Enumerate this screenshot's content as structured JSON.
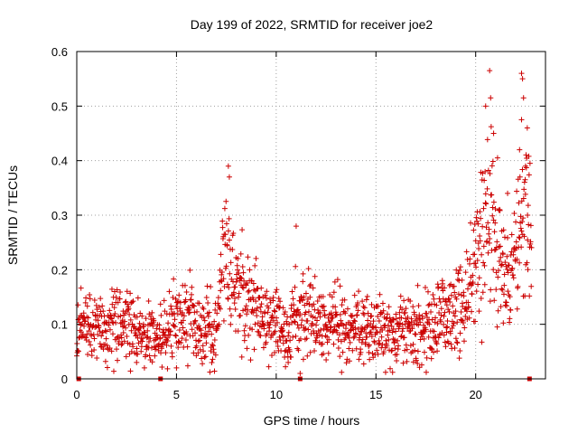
{
  "chart_data": {
    "type": "scatter",
    "title": "Day 199 of 2022, SRMTID for receiver joe2",
    "xlabel": "GPS time / hours",
    "ylabel": "SRMTID / TECUs",
    "xlim": [
      0,
      23.5
    ],
    "ylim": [
      0,
      0.6
    ],
    "xticks": [
      0,
      5,
      10,
      15,
      20
    ],
    "yticks": [
      0,
      0.1,
      0.2,
      0.3,
      0.4,
      0.5,
      0.6
    ],
    "xtick_labels": [
      "0",
      "5",
      "10",
      "15",
      "20"
    ],
    "ytick_labels": [
      "0",
      "0.1",
      "0.2",
      "0.3",
      "0.4",
      "0.5",
      "0.6"
    ],
    "grid": true,
    "series_color": "#cc0000",
    "marker": "plus",
    "series": [
      {
        "name": "SRMTID",
        "trend": [
          [
            0.0,
            0.11
          ],
          [
            1.0,
            0.09
          ],
          [
            2.0,
            0.1
          ],
          [
            3.0,
            0.09
          ],
          [
            4.0,
            0.07
          ],
          [
            5.0,
            0.12
          ],
          [
            6.0,
            0.11
          ],
          [
            7.0,
            0.08
          ],
          [
            7.5,
            0.25
          ],
          [
            8.0,
            0.16
          ],
          [
            9.0,
            0.12
          ],
          [
            10.0,
            0.1
          ],
          [
            10.5,
            0.07
          ],
          [
            11.0,
            0.12
          ],
          [
            12.0,
            0.11
          ],
          [
            13.0,
            0.1
          ],
          [
            14.0,
            0.09
          ],
          [
            15.0,
            0.09
          ],
          [
            16.0,
            0.08
          ],
          [
            17.0,
            0.09
          ],
          [
            18.0,
            0.1
          ],
          [
            19.0,
            0.12
          ],
          [
            19.5,
            0.14
          ],
          [
            20.0,
            0.22
          ],
          [
            20.5,
            0.3
          ],
          [
            21.0,
            0.25
          ],
          [
            21.5,
            0.18
          ],
          [
            22.0,
            0.22
          ],
          [
            22.5,
            0.3
          ],
          [
            22.8,
            0.26
          ]
        ],
        "peaks": [
          [
            7.6,
            0.39
          ],
          [
            7.65,
            0.37
          ],
          [
            11.0,
            0.28
          ],
          [
            20.5,
            0.5
          ],
          [
            20.7,
            0.565
          ],
          [
            20.75,
            0.515
          ],
          [
            20.9,
            0.45
          ],
          [
            22.3,
            0.56
          ],
          [
            22.35,
            0.55
          ],
          [
            22.4,
            0.515
          ],
          [
            22.3,
            0.475
          ],
          [
            22.2,
            0.42
          ],
          [
            22.5,
            0.39
          ],
          [
            21.6,
            0.34
          ],
          [
            22.6,
            0.3
          ],
          [
            11.2,
            0.01
          ],
          [
            10.6,
            0.03
          ],
          [
            5.0,
            0.02
          ],
          [
            3.0,
            0.03
          ]
        ]
      }
    ],
    "gap_markers_x": [
      0.1,
      4.2,
      11.2,
      22.7
    ]
  }
}
